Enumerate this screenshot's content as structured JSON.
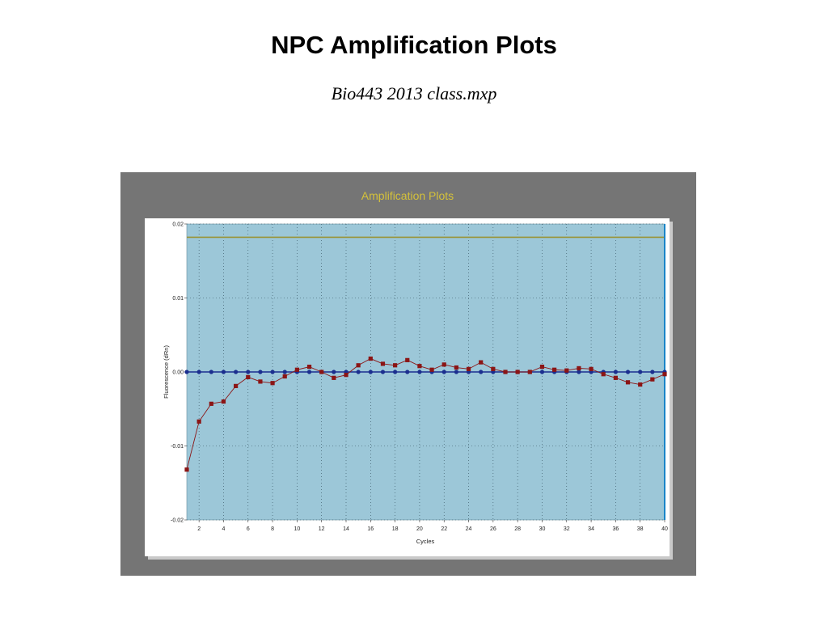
{
  "slide": {
    "title": "NPC Amplification Plots",
    "subtitle": "Bio443 2013 class.mxp"
  },
  "colors": {
    "frame": "#757575",
    "plot_bg": "#9cc7d8",
    "panel": "#ffffff",
    "title": "#d4c13a",
    "threshold": "#9a9436",
    "series_ntc": "#1b2f8f",
    "series_npc": "#8b1515",
    "cursor": "#1a85c8"
  },
  "chart_data": {
    "type": "line",
    "title": "Amplification Plots",
    "xlabel": "Cycles",
    "ylabel": "Fluorescence (dRn)",
    "xlim": [
      1,
      40
    ],
    "ylim": [
      -0.02,
      0.02
    ],
    "x_ticks": [
      2,
      4,
      6,
      8,
      10,
      12,
      14,
      16,
      18,
      20,
      22,
      24,
      26,
      28,
      30,
      32,
      34,
      36,
      38,
      40
    ],
    "y_ticks": [
      0.02,
      0.01,
      0.0,
      -0.01,
      -0.02
    ],
    "y_tick_labels": [
      "0.02",
      "0.01",
      "0.00",
      "-0.01",
      "-0.02"
    ],
    "grid": true,
    "threshold": 0.0182,
    "x": [
      1,
      2,
      3,
      4,
      5,
      6,
      7,
      8,
      9,
      10,
      11,
      12,
      13,
      14,
      15,
      16,
      17,
      18,
      19,
      20,
      21,
      22,
      23,
      24,
      25,
      26,
      27,
      28,
      29,
      30,
      31,
      32,
      33,
      34,
      35,
      36,
      37,
      38,
      39,
      40
    ],
    "series": [
      {
        "marker": "circle",
        "values": [
          0,
          0,
          0,
          0,
          0,
          0,
          0,
          0,
          0,
          0,
          0,
          0,
          0,
          0,
          0,
          0,
          0,
          0,
          0,
          0,
          0,
          0,
          0,
          0,
          0,
          0,
          0,
          0,
          0,
          0,
          0,
          0,
          0,
          0,
          0,
          0,
          0,
          0,
          0,
          0
        ]
      },
      {
        "marker": "square",
        "values": [
          -0.0132,
          -0.0067,
          -0.0043,
          -0.004,
          -0.0019,
          -0.0007,
          -0.0013,
          -0.0015,
          -0.0006,
          0.0003,
          0.0007,
          0.0,
          -0.0008,
          -0.0004,
          0.0009,
          0.0018,
          0.0011,
          0.0009,
          0.0016,
          0.0008,
          0.0003,
          0.001,
          0.0006,
          0.0004,
          0.0013,
          0.0004,
          0.0,
          0.0,
          0.0,
          0.0007,
          0.0003,
          0.0002,
          0.0005,
          0.0004,
          -0.0003,
          -0.0008,
          -0.0014,
          -0.0017,
          -0.001,
          -0.0003
        ]
      }
    ]
  }
}
